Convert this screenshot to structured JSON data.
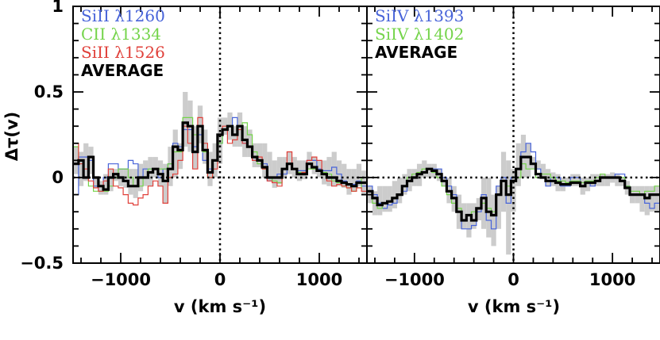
{
  "chart_data": [
    {
      "type": "line",
      "panel": "left",
      "title": "",
      "xlabel": "v (km s⁻¹)",
      "ylabel": "Δτ(v)",
      "xlim": [
        -1480,
        1480
      ],
      "ylim": [
        -0.5,
        1.0
      ],
      "x_ticks": [
        -1000,
        0,
        1000
      ],
      "x_tick_labels": [
        "−1000",
        "0",
        "1000"
      ],
      "y_ticks": [
        -0.5,
        0,
        0.5,
        1
      ],
      "y_tick_labels": [
        "−0.5",
        "0",
        "0.5",
        "1"
      ],
      "zero_lines": "dotted at v = 0 and Δτ = 0",
      "legend_position": "top-left",
      "x": [
        -1450,
        -1400,
        -1350,
        -1300,
        -1250,
        -1200,
        -1150,
        -1100,
        -1050,
        -1000,
        -950,
        -900,
        -850,
        -800,
        -750,
        -700,
        -650,
        -600,
        -550,
        -500,
        -450,
        -400,
        -350,
        -300,
        -250,
        -200,
        -150,
        -100,
        -50,
        0,
        50,
        100,
        150,
        200,
        250,
        300,
        350,
        400,
        450,
        500,
        550,
        600,
        650,
        700,
        750,
        800,
        850,
        900,
        950,
        1000,
        1050,
        1100,
        1150,
        1200,
        1250,
        1300,
        1350,
        1400,
        1450
      ],
      "band": {
        "name": "uncertainty",
        "color": "#cccccc",
        "lower": [
          0.02,
          -0.05,
          -0.02,
          0.02,
          -0.06,
          -0.1,
          -0.1,
          -0.08,
          -0.02,
          -0.05,
          -0.06,
          -0.1,
          -0.12,
          -0.08,
          -0.05,
          -0.05,
          0.0,
          -0.05,
          -0.15,
          -0.05,
          0.0,
          0.05,
          0.18,
          0.15,
          0.05,
          0.2,
          0.08,
          -0.05,
          0.0,
          0.08,
          0.25,
          0.22,
          0.18,
          0.18,
          0.12,
          0.12,
          0.06,
          0.06,
          0.0,
          -0.02,
          -0.06,
          -0.04,
          0.0,
          0.02,
          0.0,
          -0.02,
          -0.01,
          0.05,
          0.02,
          0.0,
          -0.04,
          -0.05,
          -0.05,
          -0.05,
          -0.06,
          -0.1,
          -0.08,
          -0.05,
          -0.1
        ],
        "upper": [
          0.18,
          0.15,
          0.2,
          0.18,
          0.0,
          -0.02,
          0.02,
          0.05,
          0.05,
          0.05,
          0.05,
          0.05,
          0.05,
          0.08,
          0.1,
          0.12,
          0.12,
          0.1,
          0.08,
          0.18,
          0.28,
          0.2,
          0.5,
          0.45,
          0.3,
          0.42,
          0.28,
          0.15,
          0.2,
          0.35,
          0.35,
          0.38,
          0.3,
          0.38,
          0.3,
          0.28,
          0.2,
          0.2,
          0.2,
          0.15,
          0.1,
          0.12,
          0.12,
          0.15,
          0.12,
          0.1,
          0.1,
          0.15,
          0.12,
          0.1,
          0.1,
          0.12,
          0.15,
          0.1,
          0.08,
          0.05,
          0.05,
          0.08,
          0.04
        ]
      },
      "series": [
        {
          "name": "SiII λ1260",
          "color": "#4763d9",
          "values": [
            -0.1,
            0.12,
            0.12,
            0.1,
            -0.05,
            -0.08,
            0.0,
            0.08,
            0.08,
            0.05,
            0.05,
            0.1,
            0.08,
            0.0,
            0.05,
            0.05,
            0.05,
            0.0,
            0.05,
            0.08,
            0.2,
            0.18,
            0.28,
            0.28,
            0.18,
            0.25,
            0.1,
            0.05,
            0.1,
            0.2,
            0.28,
            0.3,
            0.35,
            0.3,
            0.2,
            0.18,
            0.1,
            0.1,
            0.08,
            -0.02,
            0.0,
            0.02,
            0.02,
            0.08,
            0.05,
            0.04,
            0.04,
            0.1,
            0.1,
            0.05,
            0.04,
            0.04,
            0.06,
            0.02,
            -0.02,
            -0.04,
            -0.04,
            -0.02,
            -0.05
          ]
        },
        {
          "name": "CII λ1334",
          "color": "#74d44a",
          "values": [
            0.18,
            0.1,
            0.0,
            -0.05,
            -0.08,
            -0.08,
            -0.08,
            -0.05,
            0.0,
            0.05,
            0.05,
            0.0,
            -0.05,
            -0.05,
            0.0,
            0.05,
            0.05,
            0.05,
            0.05,
            0.08,
            0.15,
            0.15,
            0.35,
            0.35,
            0.25,
            0.3,
            0.15,
            0.0,
            0.1,
            0.2,
            0.28,
            0.3,
            0.25,
            0.3,
            0.32,
            0.25,
            0.15,
            0.08,
            0.05,
            0.0,
            -0.02,
            -0.03,
            0.05,
            0.08,
            0.05,
            0.03,
            0.03,
            0.05,
            0.05,
            0.04,
            0.03,
            0.02,
            -0.02,
            -0.03,
            -0.05,
            -0.06,
            -0.08,
            -0.06,
            0.0
          ]
        },
        {
          "name": "SiII λ1526",
          "color": "#e0403a",
          "values": [
            0.2,
            0.08,
            0.05,
            -0.02,
            -0.06,
            -0.08,
            -0.02,
            0.05,
            -0.05,
            -0.06,
            -0.1,
            -0.15,
            -0.16,
            -0.12,
            -0.1,
            -0.05,
            -0.02,
            -0.05,
            -0.15,
            0.0,
            0.02,
            0.1,
            0.3,
            0.2,
            0.05,
            0.35,
            0.2,
            0.0,
            0.05,
            0.25,
            0.3,
            0.2,
            0.22,
            0.28,
            0.2,
            0.18,
            0.1,
            0.12,
            0.05,
            -0.02,
            -0.03,
            -0.05,
            0.05,
            0.15,
            0.05,
            0.02,
            0.03,
            0.1,
            0.12,
            0.1,
            0.02,
            -0.02,
            -0.05,
            -0.04,
            -0.05,
            -0.06,
            -0.08,
            -0.06,
            -0.08
          ]
        },
        {
          "name": "AVERAGE",
          "color": "#000000",
          "values": [
            0.08,
            0.1,
            0.0,
            0.12,
            0.0,
            -0.05,
            -0.07,
            0.0,
            0.02,
            0.0,
            -0.02,
            -0.05,
            -0.05,
            0.0,
            0.0,
            0.03,
            0.05,
            0.02,
            -0.02,
            0.05,
            0.18,
            0.16,
            0.32,
            0.3,
            0.15,
            0.3,
            0.16,
            0.03,
            0.1,
            0.25,
            0.28,
            0.3,
            0.25,
            0.3,
            0.22,
            0.18,
            0.12,
            0.1,
            0.06,
            0.0,
            0.0,
            0.0,
            0.05,
            0.08,
            0.05,
            0.02,
            0.02,
            0.08,
            0.06,
            0.04,
            0.02,
            0.0,
            0.0,
            -0.02,
            -0.03,
            -0.04,
            -0.05,
            -0.03,
            -0.03
          ]
        }
      ]
    },
    {
      "type": "line",
      "panel": "right",
      "title": "",
      "xlabel": "v (km s⁻¹)",
      "ylabel": "",
      "xlim": [
        -1480,
        1480
      ],
      "ylim": [
        -0.5,
        1.0
      ],
      "x_ticks": [
        -1000,
        0,
        1000
      ],
      "x_tick_labels": [
        "−1000",
        "0",
        "1000"
      ],
      "legend_position": "top-left",
      "x": [
        -1450,
        -1400,
        -1350,
        -1300,
        -1250,
        -1200,
        -1150,
        -1100,
        -1050,
        -1000,
        -950,
        -900,
        -850,
        -800,
        -750,
        -700,
        -650,
        -600,
        -550,
        -500,
        -450,
        -400,
        -350,
        -300,
        -250,
        -200,
        -150,
        -100,
        -50,
        0,
        50,
        100,
        150,
        200,
        250,
        300,
        350,
        400,
        450,
        500,
        550,
        600,
        650,
        700,
        750,
        800,
        850,
        900,
        950,
        1000,
        1050,
        1100,
        1150,
        1200,
        1250,
        1300,
        1350,
        1400,
        1450
      ],
      "band": {
        "name": "uncertainty",
        "color": "#cccccc",
        "lower": [
          -0.15,
          -0.22,
          -0.22,
          -0.2,
          -0.2,
          -0.18,
          -0.15,
          -0.1,
          -0.08,
          -0.05,
          -0.05,
          0.0,
          0.0,
          0.0,
          -0.02,
          -0.05,
          -0.15,
          -0.2,
          -0.3,
          -0.3,
          -0.35,
          -0.3,
          -0.25,
          -0.3,
          -0.35,
          -0.4,
          -0.3,
          -0.2,
          -0.45,
          -0.2,
          -0.05,
          0.0,
          0.0,
          0.05,
          0.05,
          0.0,
          -0.05,
          -0.05,
          -0.08,
          -0.08,
          -0.05,
          -0.05,
          -0.05,
          -0.1,
          -0.08,
          -0.05,
          -0.05,
          -0.05,
          -0.05,
          -0.03,
          -0.05,
          -0.05,
          -0.1,
          -0.15,
          -0.15,
          -0.2,
          -0.22,
          -0.2,
          -0.2
        ],
        "upper": [
          -0.05,
          -0.08,
          -0.05,
          -0.05,
          -0.05,
          -0.02,
          0.0,
          0.02,
          0.05,
          0.05,
          0.08,
          0.1,
          0.08,
          0.08,
          0.05,
          0.0,
          0.0,
          -0.05,
          -0.1,
          -0.15,
          -0.15,
          -0.15,
          -0.12,
          0.0,
          0.0,
          -0.1,
          -0.05,
          0.15,
          0.1,
          0.05,
          0.2,
          0.25,
          0.2,
          0.12,
          0.1,
          0.08,
          0.05,
          0.03,
          0.02,
          0.0,
          0.0,
          0.02,
          0.02,
          0.0,
          0.0,
          0.02,
          0.02,
          0.02,
          0.02,
          0.03,
          0.02,
          0.0,
          -0.02,
          -0.05,
          -0.05,
          -0.05,
          -0.05,
          -0.05,
          -0.05
        ]
      },
      "series": [
        {
          "name": "SiIV λ1393",
          "color": "#4763d9",
          "values": [
            -0.05,
            -0.1,
            -0.15,
            -0.18,
            -0.16,
            -0.15,
            -0.1,
            -0.08,
            -0.02,
            0.0,
            0.02,
            0.03,
            0.05,
            0.05,
            0.05,
            0.0,
            -0.05,
            -0.1,
            -0.2,
            -0.3,
            -0.3,
            -0.28,
            -0.2,
            -0.1,
            -0.25,
            -0.3,
            -0.05,
            0.0,
            -0.15,
            0.0,
            0.05,
            0.15,
            0.2,
            0.15,
            0.05,
            0.0,
            -0.05,
            0.0,
            0.0,
            -0.05,
            -0.05,
            0.0,
            0.0,
            -0.05,
            -0.03,
            -0.05,
            -0.02,
            0.0,
            0.0,
            0.0,
            0.02,
            0.02,
            -0.05,
            -0.1,
            -0.1,
            -0.1,
            -0.15,
            -0.18,
            -0.15
          ]
        },
        {
          "name": "SiIV λ1402",
          "color": "#74d44a",
          "values": [
            -0.1,
            -0.15,
            -0.18,
            -0.15,
            -0.14,
            -0.12,
            -0.1,
            -0.05,
            0.0,
            0.02,
            0.03,
            0.05,
            0.05,
            0.03,
            0.0,
            -0.05,
            -0.1,
            -0.15,
            -0.18,
            -0.25,
            -0.22,
            -0.2,
            -0.18,
            -0.15,
            -0.18,
            -0.2,
            -0.1,
            -0.02,
            -0.05,
            -0.02,
            0.0,
            0.08,
            0.05,
            0.05,
            0.0,
            0.02,
            0.02,
            0.0,
            -0.02,
            -0.02,
            -0.03,
            -0.02,
            -0.02,
            -0.03,
            -0.02,
            -0.02,
            0.0,
            0.02,
            0.0,
            0.0,
            0.0,
            0.0,
            -0.05,
            -0.08,
            -0.08,
            -0.1,
            -0.08,
            -0.08,
            -0.05
          ]
        },
        {
          "name": "AVERAGE",
          "color": "#000000",
          "values": [
            -0.08,
            -0.12,
            -0.16,
            -0.15,
            -0.14,
            -0.12,
            -0.1,
            -0.05,
            -0.02,
            0.0,
            0.02,
            0.03,
            0.05,
            0.04,
            0.02,
            -0.02,
            -0.08,
            -0.12,
            -0.2,
            -0.25,
            -0.22,
            -0.25,
            -0.18,
            -0.12,
            -0.2,
            -0.22,
            -0.1,
            -0.02,
            -0.1,
            -0.02,
            0.05,
            0.12,
            0.12,
            0.08,
            0.02,
            0.0,
            -0.02,
            -0.02,
            -0.03,
            -0.04,
            -0.04,
            -0.03,
            -0.03,
            -0.05,
            -0.03,
            -0.03,
            -0.02,
            0.0,
            0.0,
            0.0,
            0.0,
            -0.02,
            -0.06,
            -0.1,
            -0.1,
            -0.1,
            -0.12,
            -0.1,
            -0.1
          ]
        }
      ]
    }
  ]
}
